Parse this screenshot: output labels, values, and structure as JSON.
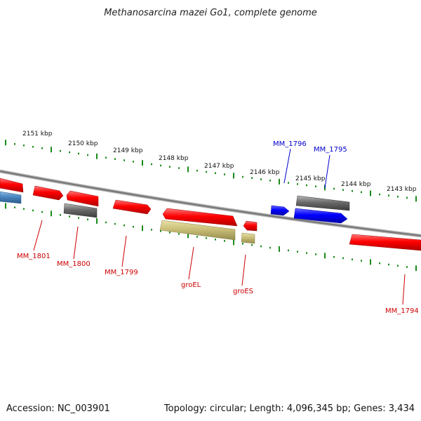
{
  "title": "Methanosarcina mazei Go1, complete genome",
  "footer": {
    "accession": "Accession: NC_003901",
    "summary": "Topology: circular; Length: 4,096,345 bp; Genes: 3,434"
  },
  "ruler": {
    "labels": [
      "2151 kbp",
      "2150 kbp",
      "2149 kbp",
      "2148 kbp",
      "2147 kbp",
      "2146 kbp",
      "2145 kbp",
      "2144 kbp",
      "2143 kbp"
    ]
  },
  "colors": {
    "forward_gene": "#ff0000",
    "reverse_gene": "#ff0000",
    "highlight_gene": "#0000ff",
    "grey_gene": "#666666",
    "olive_gene": "#c9bf78",
    "steel_gene": "#4a86c0",
    "backbone": "#8a8a8a",
    "tick": "#1a8a1a",
    "label_red": "#cc0000",
    "label_blue": "#0000cc"
  },
  "genes": [
    {
      "label": "MM_1801",
      "color": "red"
    },
    {
      "label": "MM_1800",
      "color": "red"
    },
    {
      "label": "MM_1799",
      "color": "red"
    },
    {
      "label": "groEL",
      "color": "red"
    },
    {
      "label": "groES",
      "color": "red"
    },
    {
      "label": "MM_1796",
      "color": "blue"
    },
    {
      "label": "MM_1795",
      "color": "blue"
    },
    {
      "label": "MM_1794",
      "color": "red"
    }
  ]
}
